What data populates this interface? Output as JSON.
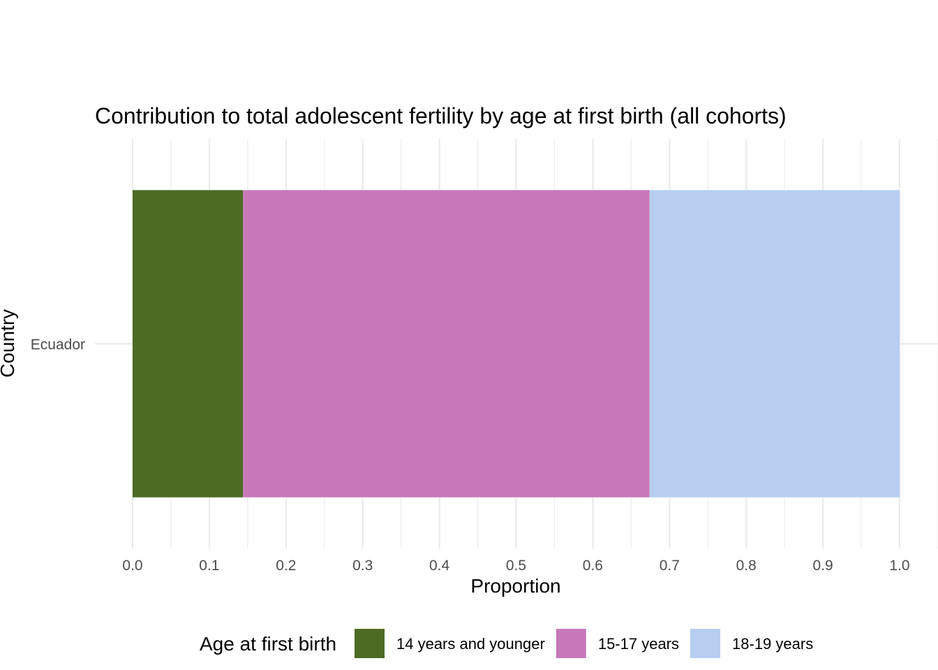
{
  "chart_data": {
    "type": "bar",
    "orientation": "horizontal",
    "stacked": true,
    "title": "Contribution to total adolescent fertility by age at first birth (all cohorts)",
    "xlabel": "Proportion",
    "ylabel": "Country",
    "categories": [
      "Ecuador"
    ],
    "xlim": [
      0,
      1
    ],
    "x_ticks": [
      "0.0",
      "0.1",
      "0.2",
      "0.3",
      "0.4",
      "0.5",
      "0.6",
      "0.7",
      "0.8",
      "0.9",
      "1.0"
    ],
    "grid": true,
    "legend": {
      "title": "Age at first birth",
      "position": "bottom"
    },
    "series": [
      {
        "name": "14 years and younger",
        "values": [
          0.144
        ],
        "color": "#4e6b24"
      },
      {
        "name": "15-17 years",
        "values": [
          0.53
        ],
        "color": "#c879b9"
      },
      {
        "name": "18-19 years",
        "values": [
          0.326
        ],
        "color": "#b7cef1"
      }
    ]
  }
}
